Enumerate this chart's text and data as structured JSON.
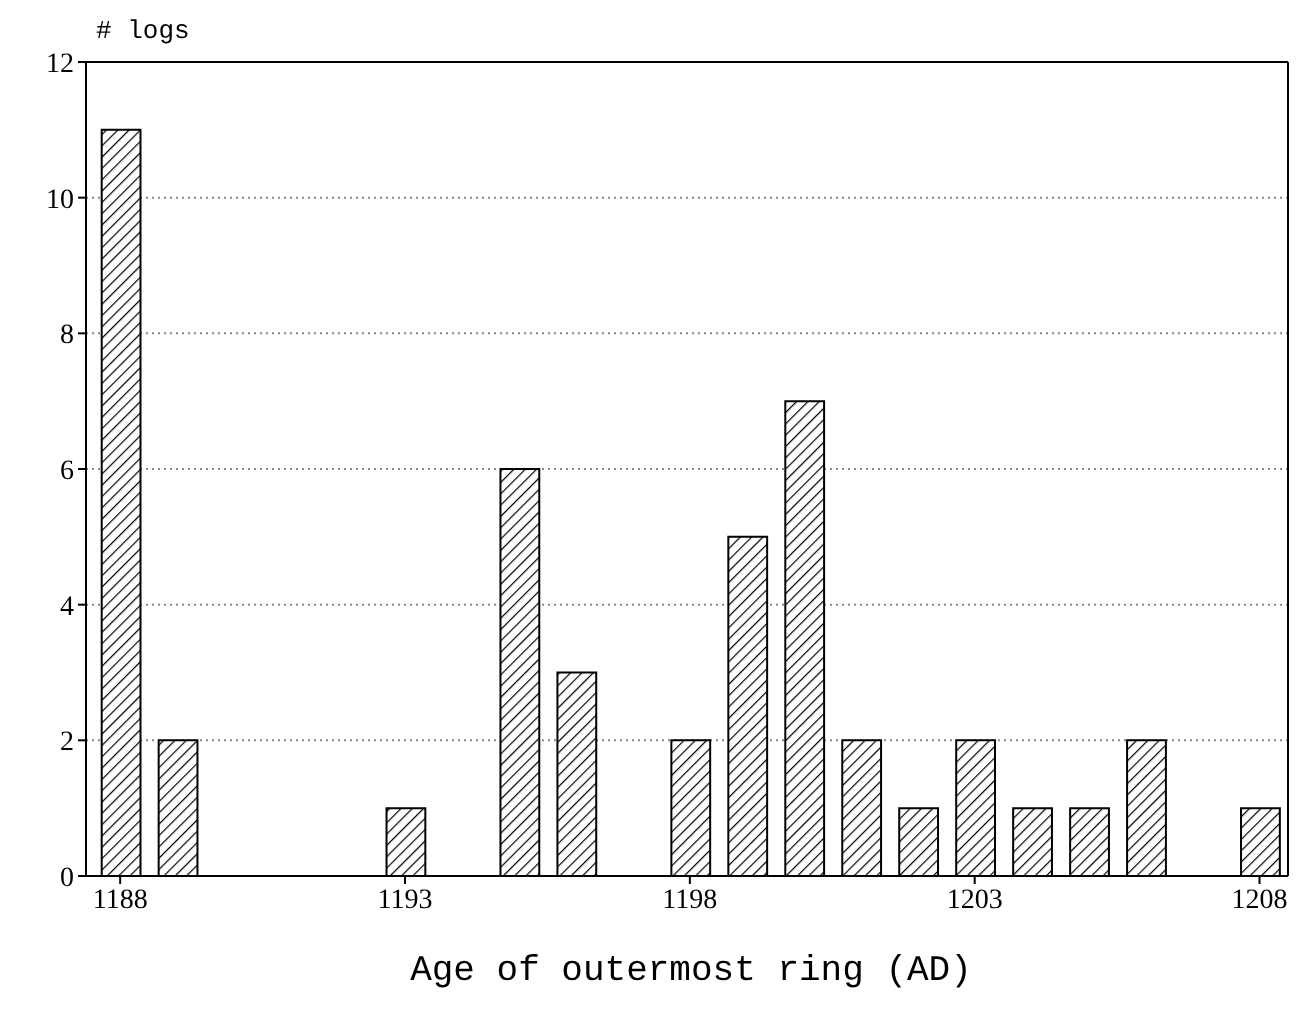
{
  "chart_data": {
    "type": "bar",
    "xlabel": "Age of outermost ring (AD)",
    "ylabel": "# logs",
    "x": [
      1188,
      1189,
      1193,
      1195,
      1196,
      1198,
      1199,
      1200,
      1201,
      1202,
      1203,
      1204,
      1205,
      1206,
      1208
    ],
    "values": [
      11,
      2,
      1,
      6,
      3,
      2,
      5,
      7,
      2,
      1,
      2,
      1,
      1,
      2,
      1
    ],
    "color": "#000000",
    "xlim": [
      1187.4,
      1208.5
    ],
    "xticks": [
      1188,
      1193,
      1198,
      1203,
      1208
    ],
    "ylim": [
      0,
      12
    ],
    "yticks": [
      0,
      2,
      4,
      6,
      8,
      10,
      12
    ],
    "grid": "y"
  }
}
